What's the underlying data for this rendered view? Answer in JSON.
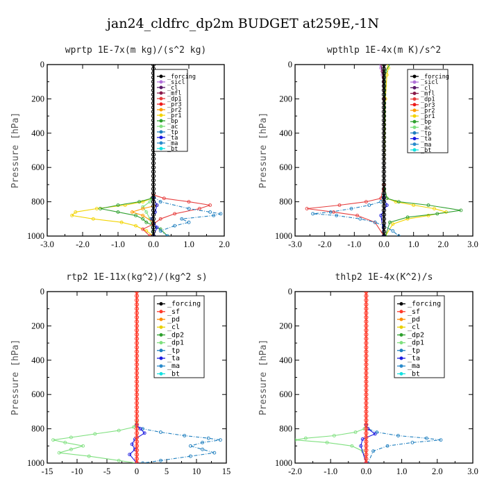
{
  "figure": {
    "title": "jan24_cldfrc_dp2m  BUDGET at259E,-1N"
  },
  "colors": {
    "forcing": "#000000",
    "sicl": "#b070d8",
    "cl": "#5a1a6a",
    "mfl": "#8a1a4a",
    "dp1": "#e63d3d",
    "pr3": "#ee1b1b",
    "pr2": "#ff9a00",
    "pr1": "#f2d400",
    "bp": "#2fa02f",
    "ac": "#7fe07f",
    "tp": "#1f7fbf",
    "ta": "#1a1ae0",
    "ma": "#2a8acc",
    "bt": "#15e0e0",
    "sf": "#ff3a2a",
    "pd": "#ff8c00",
    "cl_yellow": "#e8d000",
    "dp2": "#2fa02f",
    "dp1_light": "#7fe07f"
  },
  "chart_data": [
    {
      "type": "line",
      "title": "wprtp  1E-7x(m kg)/(s^2 kg)",
      "ylabel": "Pressure [hPa]",
      "xlim": [
        -3.0,
        2.0
      ],
      "ylim": [
        1000,
        0
      ],
      "xticks": [
        "-3.0",
        "-2.0",
        "-1.0",
        "0.0",
        "1.0",
        "2.0"
      ],
      "yticks": [
        "0",
        "200",
        "400",
        "600",
        "800",
        "1000"
      ],
      "legend_position": "upper-right",
      "legend": [
        "_forcing",
        "_sicl",
        "_cl",
        "_mfl",
        "_dp1",
        "_pr3",
        "_pr2",
        "_pr1",
        "_bp",
        "_ac",
        "_tp",
        "_ta",
        "_ma",
        "_bt"
      ],
      "series": [
        {
          "key": "pr1",
          "x": [
            0,
            0,
            -0.05,
            -0.3,
            -0.8,
            -1.6,
            -2.2,
            -2.3,
            -1.7,
            -0.9,
            -0.5,
            -0.2,
            0
          ],
          "y": [
            0,
            760,
            780,
            800,
            820,
            840,
            860,
            880,
            900,
            920,
            940,
            970,
            1000
          ]
        },
        {
          "key": "bp",
          "x": [
            0,
            0,
            -0.05,
            -0.4,
            -1.0,
            -1.5,
            -1.0,
            -0.5,
            -0.3,
            -0.2,
            0.2,
            0.4
          ],
          "y": [
            0,
            760,
            780,
            800,
            820,
            840,
            860,
            880,
            900,
            920,
            960,
            1000
          ]
        },
        {
          "key": "ac",
          "x": [
            0,
            0,
            -0.1,
            -0.3,
            -0.2,
            -0.1,
            0
          ],
          "y": [
            0,
            770,
            800,
            830,
            860,
            900,
            1000
          ]
        },
        {
          "key": "pr2",
          "x": [
            0,
            0,
            0.1,
            -0.3,
            -0.6,
            -0.3,
            0,
            0
          ],
          "y": [
            0,
            780,
            820,
            840,
            860,
            880,
            920,
            1000
          ]
        },
        {
          "key": "dp1",
          "x": [
            0,
            0,
            0.3,
            1.0,
            1.6,
            1.3,
            0.6,
            0.2,
            0,
            -0.3,
            -0.1
          ],
          "y": [
            0,
            760,
            780,
            800,
            820,
            840,
            870,
            900,
            930,
            960,
            1000
          ]
        },
        {
          "key": "tp",
          "x": [
            0,
            0,
            0.2,
            1.0,
            1.6,
            1.9,
            1.7,
            0.8,
            1.0,
            0.6,
            0.2,
            0.4
          ],
          "y": [
            0,
            770,
            800,
            840,
            860,
            870,
            880,
            900,
            920,
            940,
            970,
            1000
          ]
        },
        {
          "key": "ta",
          "x": [
            0,
            0,
            0.1,
            0.05,
            -0.05,
            0.1,
            0
          ],
          "y": [
            0,
            780,
            820,
            860,
            900,
            950,
            1000
          ]
        },
        {
          "key": "forcing",
          "x": [
            0,
            0
          ],
          "y": [
            0,
            1000
          ]
        }
      ]
    },
    {
      "type": "line",
      "title": "wpthlp  1E-4x(m K)/s^2",
      "ylabel": "Pressure [hPa]",
      "xlim": [
        -3.0,
        3.0
      ],
      "ylim": [
        1000,
        0
      ],
      "xticks": [
        "-3.0",
        "-2.0",
        "-1.0",
        "0.0",
        "1.0",
        "2.0",
        "3.0"
      ],
      "yticks": [
        "0",
        "200",
        "400",
        "600",
        "800",
        "1000"
      ],
      "legend_position": "upper-right",
      "legend": [
        "_forcing",
        "_sicl",
        "_cl",
        "_mfl",
        "_dp1",
        "_pr3",
        "_pr2",
        "_pr1",
        "_bp",
        "_ac",
        "_tp",
        "_ta",
        "_ma",
        "_bt"
      ],
      "series": [
        {
          "key": "pr1",
          "x": [
            0.12,
            0.15,
            0.1,
            0.05,
            0,
            0.1,
            0.4,
            1.0,
            1.7,
            2.1,
            1.5,
            0.8,
            0.3,
            0.05
          ],
          "y": [
            0,
            20,
            60,
            200,
            700,
            780,
            800,
            820,
            840,
            860,
            880,
            900,
            930,
            1000
          ]
        },
        {
          "key": "bp",
          "x": [
            0.2,
            0.05,
            0,
            0.1,
            0.5,
            1.5,
            2.6,
            1.8,
            0.8,
            0.2,
            0.05
          ],
          "y": [
            0,
            40,
            700,
            780,
            800,
            820,
            850,
            870,
            890,
            920,
            1000
          ]
        },
        {
          "key": "sicl",
          "x": [
            -0.15,
            -0.1,
            -0.05,
            0,
            0
          ],
          "y": [
            0,
            20,
            60,
            200,
            1000
          ]
        },
        {
          "key": "mfl",
          "x": [
            -0.1,
            -0.05,
            0,
            0
          ],
          "y": [
            0,
            40,
            200,
            1000
          ]
        },
        {
          "key": "dp1",
          "x": [
            0,
            0,
            -0.1,
            -0.6,
            -1.5,
            -2.6,
            -1.7,
            -0.9,
            -0.3,
            0
          ],
          "y": [
            0,
            700,
            780,
            800,
            820,
            840,
            860,
            880,
            920,
            1000
          ]
        },
        {
          "key": "tp",
          "x": [
            0,
            0,
            -0.1,
            -0.5,
            -1.1,
            -1.8,
            -2.4,
            -1.6,
            -0.8,
            -0.3,
            0,
            0.3,
            0.5
          ],
          "y": [
            0,
            760,
            800,
            820,
            840,
            860,
            870,
            880,
            900,
            920,
            940,
            970,
            1000
          ]
        },
        {
          "key": "ta",
          "x": [
            0,
            0,
            0.1,
            -0.1,
            0
          ],
          "y": [
            0,
            780,
            820,
            880,
            1000
          ]
        },
        {
          "key": "forcing",
          "x": [
            0,
            0
          ],
          "y": [
            0,
            1000
          ]
        }
      ]
    },
    {
      "type": "line",
      "title": "rtp2  1E-11x(kg^2)/(kg^2 s)",
      "ylabel": "Pressure [hPa]",
      "xlim": [
        -15,
        15
      ],
      "ylim": [
        1000,
        0
      ],
      "xticks": [
        "-15",
        "-10",
        "-5",
        "0",
        "5",
        "10",
        "15"
      ],
      "yticks": [
        "0",
        "200",
        "400",
        "600",
        "800",
        "1000"
      ],
      "legend_position": "upper-right",
      "legend": [
        "_forcing",
        "_sf",
        "_pd",
        "_cl",
        "_dp2",
        "_dp1",
        "_tp",
        "_ta",
        "_ma",
        "_bt"
      ],
      "series": [
        {
          "key": "dp1_light",
          "x": [
            0,
            0,
            -0.5,
            -3,
            -7,
            -11,
            -14,
            -12,
            -9,
            -11,
            -13,
            -8,
            -3,
            0
          ],
          "y": [
            0,
            760,
            790,
            810,
            830,
            850,
            865,
            880,
            900,
            920,
            940,
            960,
            985,
            1000
          ]
        },
        {
          "key": "tp",
          "x": [
            0,
            0,
            1,
            4,
            8,
            12,
            14,
            11,
            9,
            11,
            13,
            9,
            4,
            1
          ],
          "y": [
            0,
            780,
            800,
            820,
            840,
            855,
            865,
            880,
            900,
            920,
            940,
            960,
            985,
            1000
          ]
        },
        {
          "key": "ta",
          "x": [
            0,
            0,
            0.6,
            1.3,
            -0.3,
            -0.8,
            -0.3,
            -1.2,
            0
          ],
          "y": [
            0,
            780,
            800,
            825,
            860,
            890,
            920,
            950,
            1000
          ]
        },
        {
          "key": "sf",
          "x": [
            0,
            0
          ],
          "y": [
            0,
            1000
          ]
        }
      ]
    },
    {
      "type": "line",
      "title": "thlp2  1E-4x(K^2)/s",
      "ylabel": "Pressure [hPa]",
      "xlim": [
        -2.0,
        3.0
      ],
      "ylim": [
        1000,
        0
      ],
      "xticks": [
        "-2.0",
        "-1.0",
        "0.0",
        "1.0",
        "2.0",
        "3.0"
      ],
      "yticks": [
        "0",
        "200",
        "400",
        "600",
        "800",
        "1000"
      ],
      "legend_position": "upper-right",
      "legend": [
        "_forcing",
        "_sf",
        "_pd",
        "_cl",
        "_dp2",
        "_dp1",
        "_tp",
        "_ta",
        "_ma",
        "_bt"
      ],
      "series": [
        {
          "key": "dp1_light",
          "x": [
            0,
            0,
            -0.05,
            -0.3,
            -0.9,
            -1.7,
            -2.0,
            -1.1,
            -0.4,
            -0.1,
            0
          ],
          "y": [
            0,
            780,
            800,
            820,
            840,
            855,
            865,
            880,
            900,
            930,
            1000
          ]
        },
        {
          "key": "tp",
          "x": [
            0,
            0,
            0.05,
            0.3,
            0.9,
            1.7,
            2.1,
            1.3,
            0.6,
            0.2,
            0.05
          ],
          "y": [
            0,
            780,
            800,
            820,
            840,
            855,
            865,
            880,
            900,
            930,
            1000
          ]
        },
        {
          "key": "ta",
          "x": [
            0,
            0,
            0.05,
            0.25,
            -0.1,
            -0.15,
            0
          ],
          "y": [
            0,
            780,
            800,
            830,
            860,
            900,
            1000
          ]
        },
        {
          "key": "sf",
          "x": [
            0,
            0
          ],
          "y": [
            0,
            1000
          ]
        }
      ]
    }
  ]
}
